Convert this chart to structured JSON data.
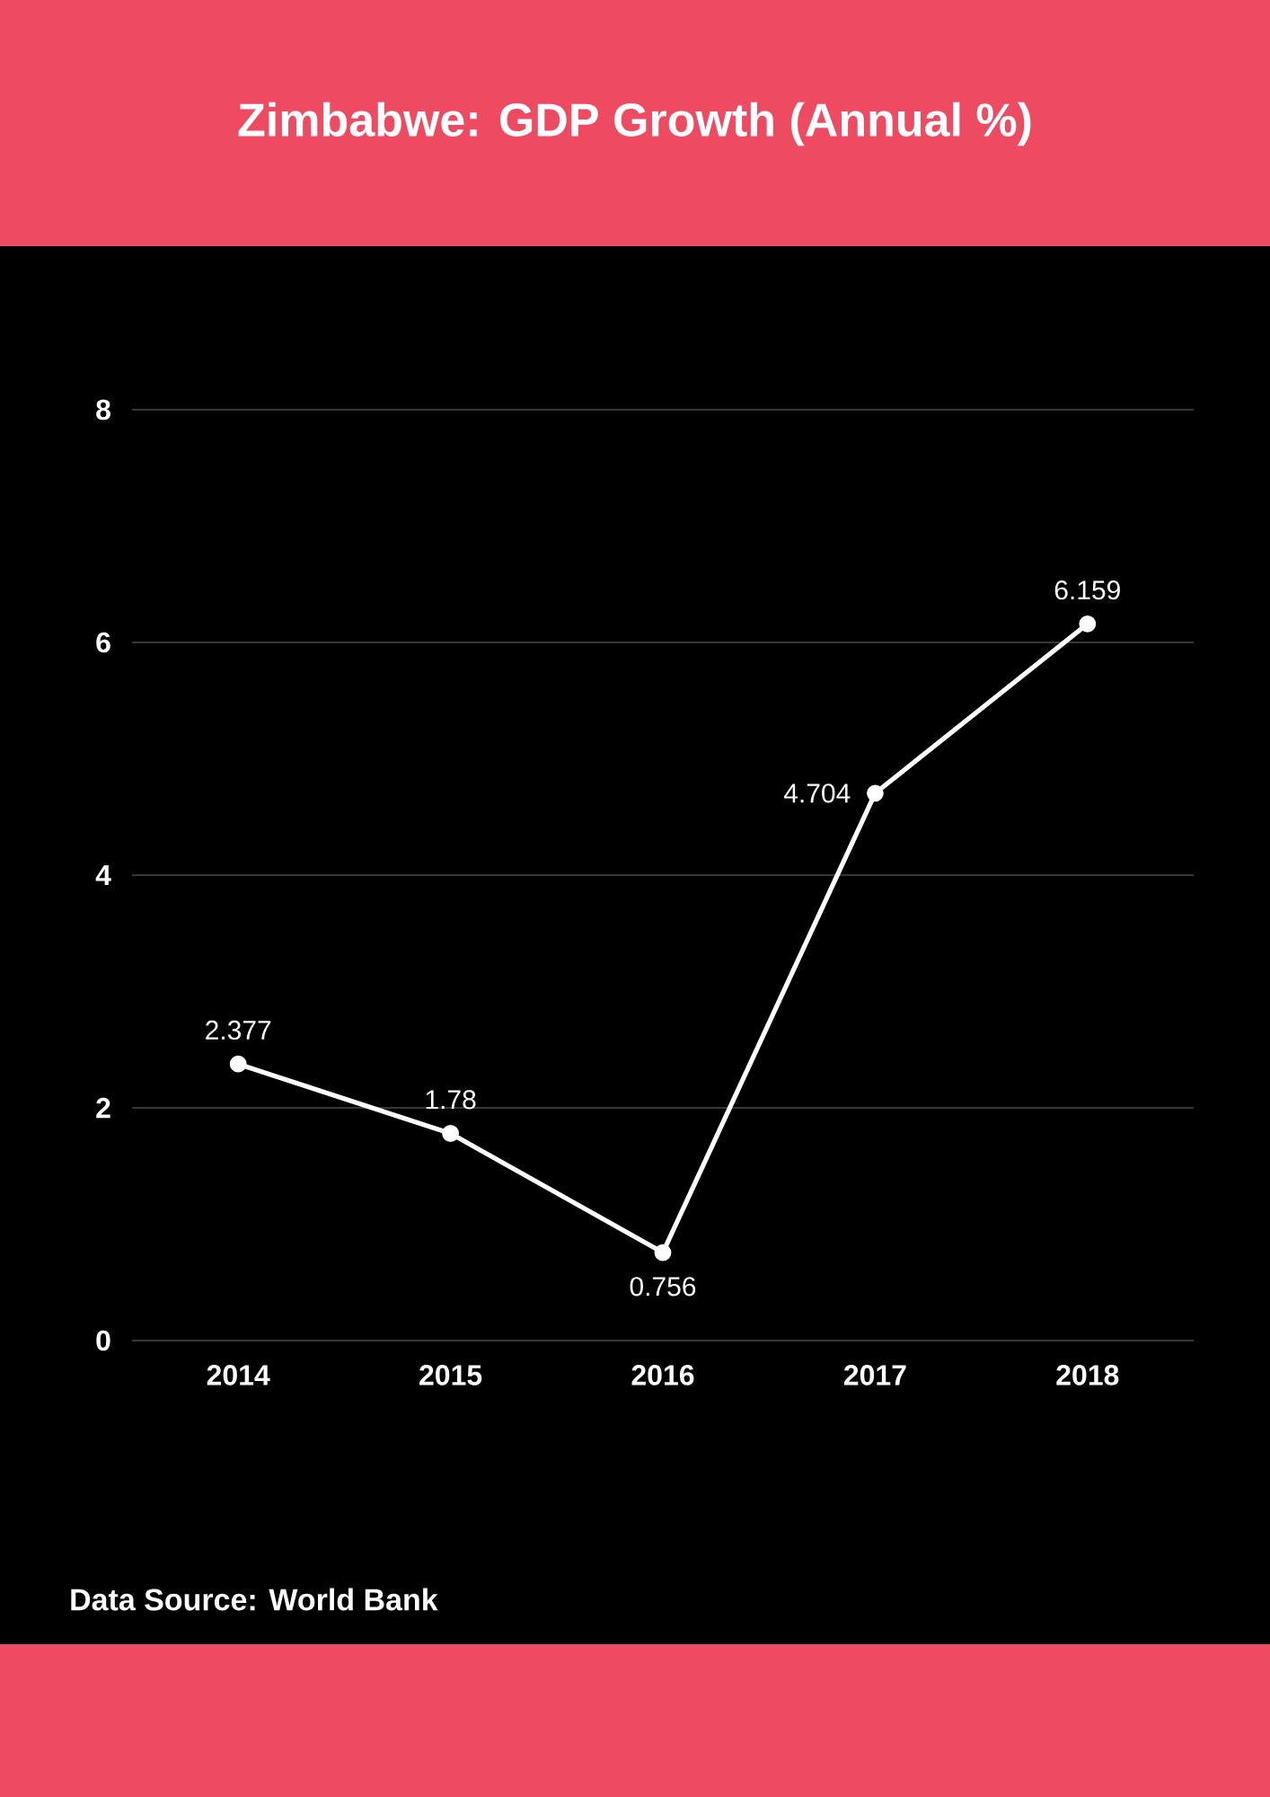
{
  "chart_data": {
    "type": "line",
    "title": "Zimbabwe: GDP Growth (Annual %)",
    "categories": [
      "2014",
      "2015",
      "2016",
      "2017",
      "2018"
    ],
    "values": [
      2.377,
      1.78,
      0.756,
      4.704,
      6.159
    ],
    "color": "#ffffff",
    "ylim": [
      0,
      8
    ],
    "yticks": [
      0,
      2,
      4,
      6,
      8
    ],
    "grid": "y",
    "marker": "circle",
    "line_style": "solid",
    "data_labels": true,
    "annotations": [
      "Data Source: World Bank"
    ]
  }
}
